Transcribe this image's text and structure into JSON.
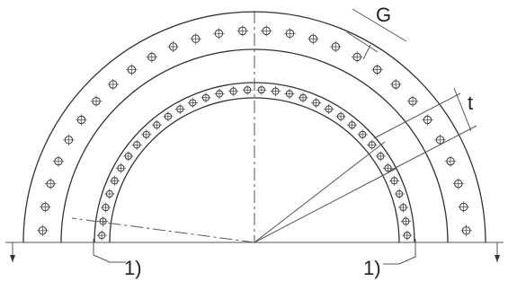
{
  "drawing": {
    "labels": {
      "G": "G",
      "t": "t",
      "note_left": "1)",
      "note_right": "1)"
    },
    "outer_holes_count": 28,
    "inner_holes_count": 34,
    "colors": {
      "line": "#333333",
      "background": "#ffffff"
    }
  }
}
